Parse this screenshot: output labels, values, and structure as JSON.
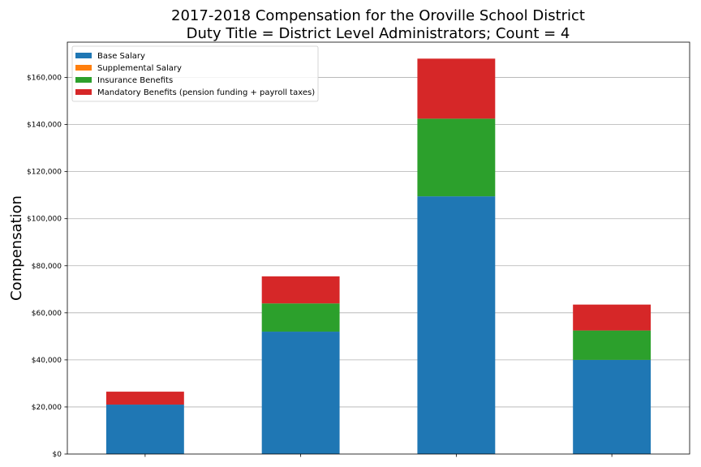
{
  "chart_data": {
    "type": "bar",
    "stacked": true,
    "title": [
      "2017-2018 Compensation for the Oroville School District",
      "Duty Title = District Level Administrators; Count = 4"
    ],
    "xlabel": "",
    "ylabel": "Compensation",
    "ylim": [
      0,
      175000
    ],
    "yticks": [
      0,
      20000,
      40000,
      60000,
      80000,
      100000,
      120000,
      140000,
      160000
    ],
    "ytick_labels": [
      "$0",
      "$20,000",
      "$40,000",
      "$60,000",
      "$80,000",
      "$100,000",
      "$120,000",
      "$140,000",
      "$160,000"
    ],
    "grid": "horizontal",
    "legend_position": "top-left",
    "categories": [
      "",
      "",
      "",
      ""
    ],
    "series": [
      {
        "name": "Base Salary",
        "color": "#1f77b4",
        "values": [
          21000,
          52000,
          109500,
          40000
        ]
      },
      {
        "name": "Supplemental Salary",
        "color": "#ff7f0e",
        "values": [
          0,
          0,
          0,
          0
        ]
      },
      {
        "name": "Insurance Benefits",
        "color": "#2ca02c",
        "values": [
          0,
          12000,
          33000,
          12500
        ]
      },
      {
        "name": "Mandatory Benefits (pension funding + payroll taxes)",
        "color": "#d62728",
        "values": [
          5500,
          11500,
          25500,
          11000
        ]
      }
    ]
  }
}
